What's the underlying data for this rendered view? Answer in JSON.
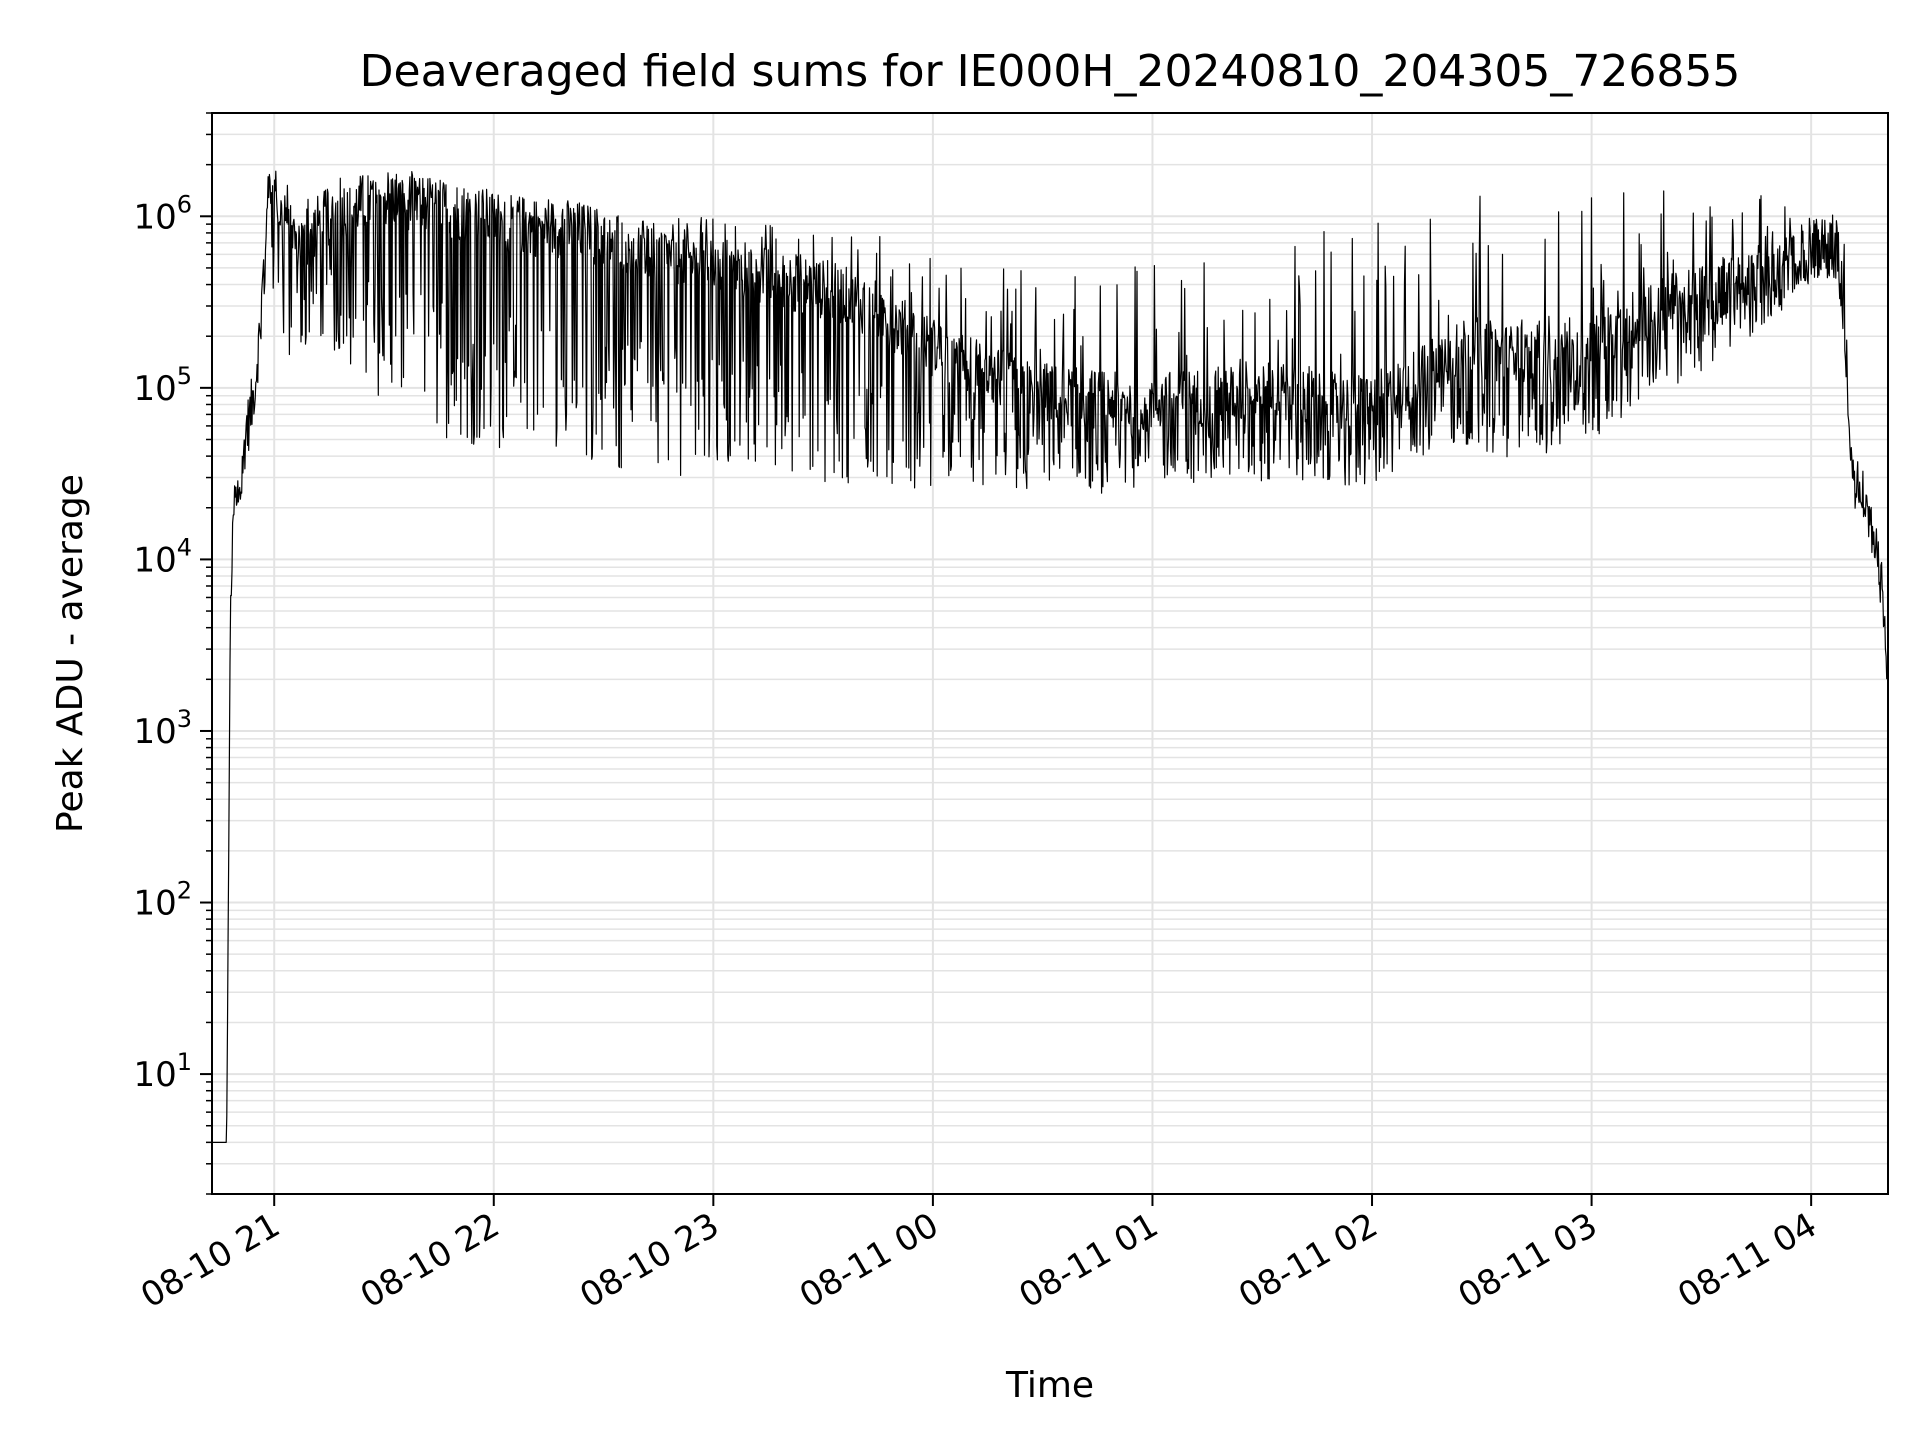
{
  "chart_data": {
    "type": "line",
    "title": "Deaveraged field sums for IE000H_20240810_204305_726855",
    "xlabel": "Time",
    "ylabel": "Peak ADU - average",
    "yscale": "log",
    "ylim": [
      2,
      4000000
    ],
    "xlim": [
      "2024-08-10 20:43",
      "2024-08-11 04:21"
    ],
    "grid": true,
    "line_color": "#000000",
    "grid_color": "#e3e3e3",
    "x_ticks": [
      {
        "value": "2024-08-10 21:00",
        "label": "08-10 21"
      },
      {
        "value": "2024-08-10 22:00",
        "label": "08-10 22"
      },
      {
        "value": "2024-08-10 23:00",
        "label": "08-10 23"
      },
      {
        "value": "2024-08-11 00:00",
        "label": "08-11 00"
      },
      {
        "value": "2024-08-11 01:00",
        "label": "08-11 01"
      },
      {
        "value": "2024-08-11 02:00",
        "label": "08-11 02"
      },
      {
        "value": "2024-08-11 03:00",
        "label": "08-11 03"
      },
      {
        "value": "2024-08-11 04:00",
        "label": "08-11 04"
      }
    ],
    "y_ticks": [
      {
        "value": 10,
        "base": "10",
        "exp": "1"
      },
      {
        "value": 100,
        "base": "10",
        "exp": "2"
      },
      {
        "value": 1000,
        "base": "10",
        "exp": "3"
      },
      {
        "value": 10000,
        "base": "10",
        "exp": "4"
      },
      {
        "value": 100000,
        "base": "10",
        "exp": "5"
      },
      {
        "value": 1000000,
        "base": "10",
        "exp": "6"
      }
    ],
    "series": [
      {
        "x": [
          "2024-08-10 20:43",
          "2024-08-10 20:45",
          "2024-08-10 20:45",
          "2024-08-10 20:46",
          "2024-08-10 20:47",
          "2024-08-10 20:48",
          "2024-08-10 20:49",
          "2024-08-10 20:50",
          "2024-08-10 20:51",
          "2024-08-10 20:52",
          "2024-08-10 20:54",
          "2024-08-10 20:56",
          "2024-08-10 20:58",
          "2024-08-10 20:59",
          "2024-08-10 21:00",
          "2024-08-10 21:02",
          "2024-08-10 21:04",
          "2024-08-10 21:08",
          "2024-08-10 21:12",
          "2024-08-10 21:18",
          "2024-08-10 21:25",
          "2024-08-10 21:32",
          "2024-08-10 21:40",
          "2024-08-10 21:48",
          "2024-08-10 21:56",
          "2024-08-10 22:05",
          "2024-08-10 22:15",
          "2024-08-10 22:25",
          "2024-08-10 22:35",
          "2024-08-10 22:45",
          "2024-08-10 22:55",
          "2024-08-10 23:05",
          "2024-08-10 23:15",
          "2024-08-10 23:25",
          "2024-08-10 23:35",
          "2024-08-10 23:45",
          "2024-08-10 23:55",
          "2024-08-11 00:05",
          "2024-08-11 00:15",
          "2024-08-11 00:25",
          "2024-08-11 00:35",
          "2024-08-11 00:45",
          "2024-08-11 00:55",
          "2024-08-11 01:05",
          "2024-08-11 01:15",
          "2024-08-11 01:25",
          "2024-08-11 01:35",
          "2024-08-11 01:45",
          "2024-08-11 01:55",
          "2024-08-11 02:05",
          "2024-08-11 02:15",
          "2024-08-11 02:25",
          "2024-08-11 02:35",
          "2024-08-11 02:45",
          "2024-08-11 02:55",
          "2024-08-11 03:05",
          "2024-08-11 03:15",
          "2024-08-11 03:25",
          "2024-08-11 03:35",
          "2024-08-11 03:45",
          "2024-08-11 03:55",
          "2024-08-11 04:02",
          "2024-08-11 04:07",
          "2024-08-11 04:09",
          "2024-08-11 04:11",
          "2024-08-11 04:13",
          "2024-08-11 04:15",
          "2024-08-11 04:17",
          "2024-08-11 04:19",
          "2024-08-11 04:21"
        ],
        "y": [
          4,
          4,
          4,
          4,
          4,
          4000,
          20000,
          25000,
          30000,
          50000,
          80000,
          200000,
          1000000,
          1600000,
          1400000,
          1000000,
          800000,
          700000,
          900000,
          1100000,
          1200000,
          1300000,
          1200000,
          1100000,
          1000000,
          900000,
          850000,
          800000,
          700000,
          600000,
          550000,
          500000,
          450000,
          400000,
          350000,
          280000,
          200000,
          150000,
          120000,
          100000,
          90000,
          85000,
          80000,
          85000,
          90000,
          90000,
          95000,
          85000,
          80000,
          90000,
          130000,
          180000,
          160000,
          150000,
          140000,
          200000,
          280000,
          330000,
          380000,
          450000,
          550000,
          750000,
          700000,
          300000,
          35000,
          25000,
          20000,
          15000,
          8000,
          2000
        ],
        "lower_envelope": [
          4,
          4,
          4,
          4,
          4,
          4000,
          18000,
          20000,
          22000,
          35000,
          50000,
          150000,
          400000,
          500000,
          300000,
          200000,
          150000,
          150000,
          200000,
          150000,
          100000,
          80000,
          60000,
          50000,
          45000,
          40000,
          38000,
          35000,
          32000,
          30000,
          30000,
          30000,
          30000,
          28000,
          27000,
          26000,
          26000,
          26000,
          25000,
          24000,
          24000,
          24000,
          26000,
          27000,
          28000,
          28000,
          28000,
          27000,
          26000,
          28000,
          40000,
          45000,
          40000,
          38000,
          40000,
          60000,
          80000,
          100000,
          150000,
          200000,
          300000,
          400000,
          350000,
          200000,
          30000,
          22000,
          18000,
          12000,
          6000,
          2000
        ],
        "upper_envelope": [
          4,
          4,
          4,
          4,
          4,
          4000,
          22000,
          30000,
          40000,
          80000,
          100000,
          250000,
          1600000,
          1800000,
          1700000,
          1500000,
          1600000,
          1700000,
          1700000,
          1800000,
          1800000,
          1700000,
          1600000,
          1500000,
          1400000,
          1300000,
          1300000,
          1200000,
          1100000,
          1000000,
          1000000,
          950000,
          900000,
          900000,
          850000,
          800000,
          700000,
          600000,
          550000,
          500000,
          500000,
          500000,
          550000,
          600000,
          650000,
          700000,
          750000,
          800000,
          900000,
          1200000,
          1400000,
          1400000,
          1300000,
          1300000,
          1400000,
          1500000,
          1500000,
          1500000,
          1500000,
          1600000,
          1400000,
          1200000,
          1000000,
          800000,
          40000,
          30000,
          25000,
          18000,
          10000,
          2000
        ]
      }
    ]
  }
}
